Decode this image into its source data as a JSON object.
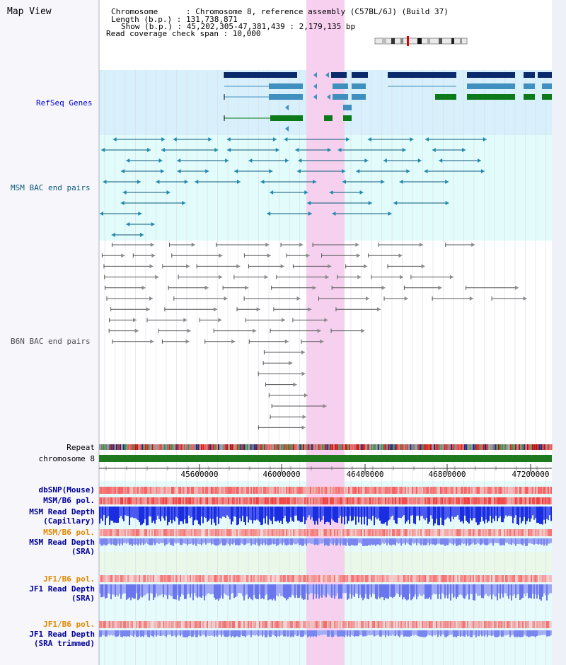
{
  "header": {
    "title": "Map View",
    "info_lines": [
      "Chromosome      : Chromosome 8, reference assembly (C57BL/6J) (Build 37)",
      "Length (b.p.) : 131,738,871",
      "Show (b.p.) : 45,202,305-47,381,439 : 2,179,135 bp",
      "Read coverage check span : 10,000"
    ]
  },
  "sections": {
    "refseq": "RefSeq Genes",
    "msm_bac": "MSM BAC end pairs",
    "b6n_bac": "B6N BAC end pairs"
  },
  "tracks": {
    "repeat": "Repeat",
    "chromosome": "chromosome 8",
    "dbsnp": "dbSNP(Mouse)",
    "msm_b6_pol_1": "MSM/B6 pol.",
    "msm_read_depth_cap": "MSM Read Depth",
    "msm_read_depth_cap_sub": "(Capillary)",
    "msm_b6_pol_2": "MSM/B6 pol.",
    "msm_read_depth_sra": "MSM Read Depth",
    "msm_read_depth_sra_sub": "(SRA)",
    "jf1_b6_pol_1": "JF1/B6 pol.",
    "jf1_read_depth_sra": "JF1 Read Depth",
    "jf1_read_depth_sra_sub": "(SRA)",
    "jf1_b6_pol_2": "JF1/B6 pol.",
    "jf1_read_depth_trim": "JF1 Read Depth",
    "jf1_read_depth_trim_sub": "(SRA trimmed)"
  },
  "axis_ticks": [
    "45600000",
    "46000000",
    "46400000",
    "46800000",
    "47200000"
  ],
  "colors": {
    "refseq_label": "#0000cc",
    "msm_label": "#0a5a7a",
    "b6n_label": "#505050",
    "track_label_blue": "#000099",
    "track_label_orange": "#e08a00",
    "highlight": "#f7d0ef",
    "refseq_bg": "#d8f0fb",
    "msm_bg": "#e2fbfb",
    "chromosome_bar": "#1f7a1f"
  }
}
